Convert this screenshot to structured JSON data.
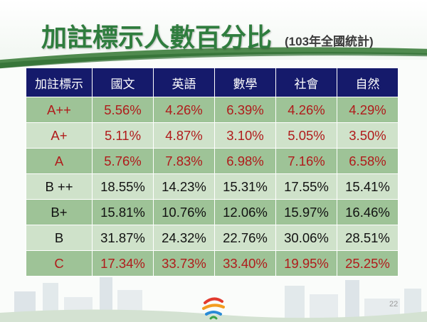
{
  "slide": {
    "title": "加註標示人數百分比",
    "subtitle": "(103年全國統計)",
    "page_number": "22"
  },
  "table": {
    "headers": [
      "加註標示",
      "國文",
      "英語",
      "數學",
      "社會",
      "自然"
    ],
    "rows": [
      {
        "label": "A++",
        "values": [
          "5.56%",
          "4.26%",
          "6.39%",
          "4.26%",
          "4.29%"
        ]
      },
      {
        "label": "A+",
        "values": [
          "5.11%",
          "4.87%",
          "3.10%",
          "5.05%",
          "3.50%"
        ]
      },
      {
        "label": "A",
        "values": [
          "5.76%",
          "7.83%",
          "6.98%",
          "7.16%",
          "6.58%"
        ]
      },
      {
        "label": "B ++",
        "values": [
          "18.55%",
          "14.23%",
          "15.31%",
          "17.55%",
          "15.41%"
        ]
      },
      {
        "label": "B+",
        "values": [
          "15.81%",
          "10.76%",
          "12.06%",
          "15.97%",
          "16.46%"
        ]
      },
      {
        "label": "B",
        "values": [
          "31.87%",
          "24.32%",
          "22.76%",
          "30.06%",
          "28.51%"
        ]
      },
      {
        "label": "C",
        "values": [
          "17.34%",
          "33.73%",
          "33.40%",
          "19.95%",
          "25.25%"
        ]
      }
    ]
  },
  "colors": {
    "header_bg": "#151a6b",
    "row_dark": "#9ec397",
    "row_light": "#cfe2ca",
    "red_text": "#b01b1b",
    "title_green": "#2f7d3e"
  },
  "icons": {
    "logo": "logo-icon"
  }
}
